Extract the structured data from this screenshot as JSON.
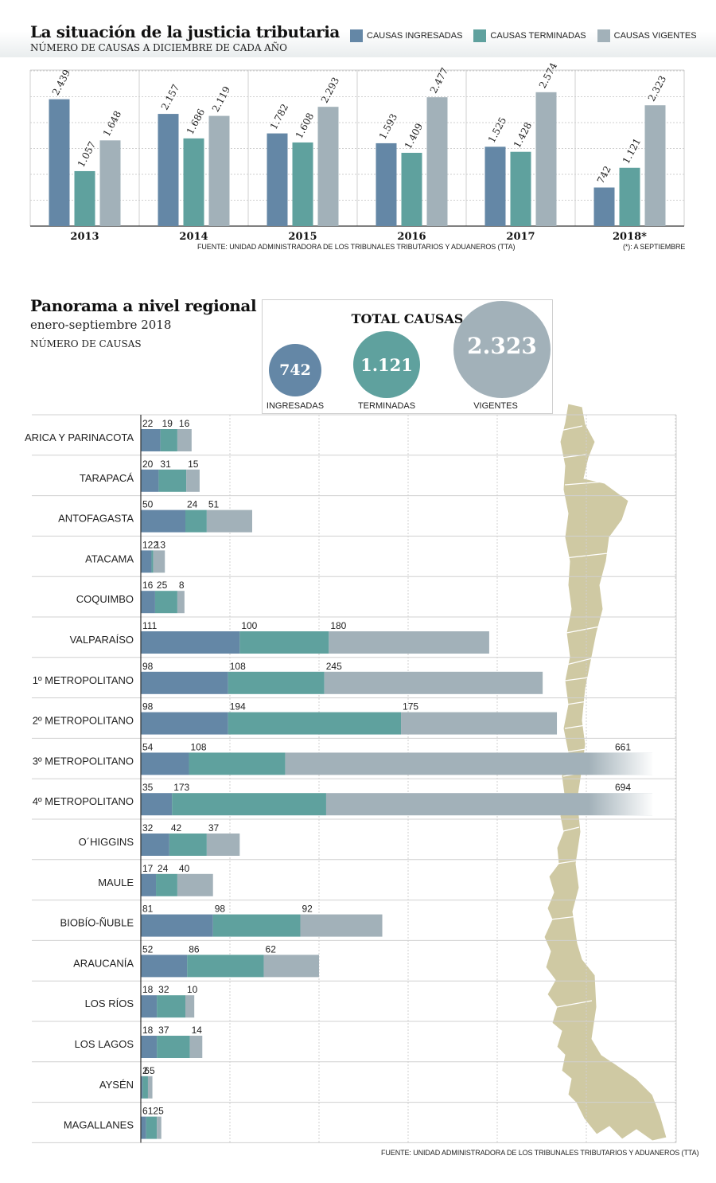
{
  "header": {
    "title": "La situación de la justicia tributaria",
    "subtitle": "NÚMERO DE CAUSAS A DICIEMBRE DE CADA AÑO"
  },
  "legend": [
    {
      "label": "CAUSAS INGRESADAS",
      "color": "#6487a6"
    },
    {
      "label": "CAUSAS TERMINADAS",
      "color": "#5fa19e"
    },
    {
      "label": "CAUSAS VIGENTES",
      "color": "#a2b1b9"
    }
  ],
  "source_top": "FUENTE: UNIDAD ADMINISTRADORA DE LOS TRIBUNALES TRIBUTARIOS Y ADUANEROS (TTA)",
  "note_top": "(*): A SEPTIEMBRE",
  "regional": {
    "title": "Panorama a nivel regional",
    "subtitle": "enero-septiembre 2018",
    "unit": "NÚMERO DE CAUSAS"
  },
  "totals": {
    "title": "TOTAL CAUSAS",
    "ingresadas": {
      "value": "742",
      "label": "INGRESADAS"
    },
    "terminadas": {
      "value": "1.121",
      "label": "TERMINADAS"
    },
    "vigentes": {
      "value": "2.323",
      "label": "VIGENTES"
    }
  },
  "source_bottom": "FUENTE: UNIDAD ADMINISTRADORA DE LOS TRIBUNALES TRIBUTARIOS Y ADUANEROS (TTA)",
  "chart_data": [
    {
      "type": "bar",
      "categories": [
        "2013",
        "2014",
        "2015",
        "2016",
        "2017",
        "2018*"
      ],
      "series": [
        {
          "name": "CAUSAS INGRESADAS",
          "values": [
            2439,
            2157,
            1782,
            1593,
            1525,
            742
          ],
          "labels": [
            "2.439",
            "2.157",
            "1.782",
            "1.593",
            "1.525",
            "742"
          ]
        },
        {
          "name": "CAUSAS TERMINADAS",
          "values": [
            1057,
            1686,
            1608,
            1409,
            1428,
            1121
          ],
          "labels": [
            "1.057",
            "1.686",
            "1.608",
            "1.409",
            "1.428",
            "1.121"
          ]
        },
        {
          "name": "CAUSAS VIGENTES",
          "values": [
            1648,
            2119,
            2293,
            2477,
            2574,
            2323
          ],
          "labels": [
            "1.648",
            "2.119",
            "2.293",
            "2.477",
            "2.574",
            "2.323"
          ]
        }
      ],
      "ylim": [
        0,
        3000
      ],
      "grid": true
    },
    {
      "type": "bar",
      "orientation": "horizontal",
      "stacked": true,
      "categories": [
        "ARICA Y PARINACOTA",
        "TARAPACÁ",
        "ANTOFAGASTA",
        "ATACAMA",
        "COQUIMBO",
        "VALPARAÍSO",
        "1º METROPOLITANO",
        "2º METROPOLITANO",
        "3º METROPOLITANO",
        "4º METROPOLITANO",
        "O´HIGGINS",
        "MAULE",
        "BIOBÍO-ÑUBLE",
        "ARAUCANÍA",
        "LOS RÍOS",
        "LOS LAGOS",
        "AYSÉN",
        "MAGALLANES"
      ],
      "series": [
        {
          "name": "INGRESADAS",
          "values": [
            22,
            20,
            50,
            12,
            16,
            111,
            98,
            98,
            54,
            35,
            32,
            17,
            81,
            52,
            18,
            18,
            2,
            6
          ]
        },
        {
          "name": "TERMINADAS",
          "values": [
            19,
            31,
            24,
            2,
            25,
            100,
            108,
            194,
            108,
            173,
            42,
            24,
            98,
            86,
            32,
            37,
            6,
            12
          ]
        },
        {
          "name": "VIGENTES",
          "values": [
            16,
            15,
            51,
            13,
            8,
            180,
            245,
            175,
            661,
            694,
            37,
            40,
            92,
            62,
            10,
            14,
            5,
            5
          ]
        }
      ],
      "truncated_rows": [
        "3º METROPOLITANO",
        "4º METROPOLITANO"
      ],
      "grid": true
    }
  ]
}
